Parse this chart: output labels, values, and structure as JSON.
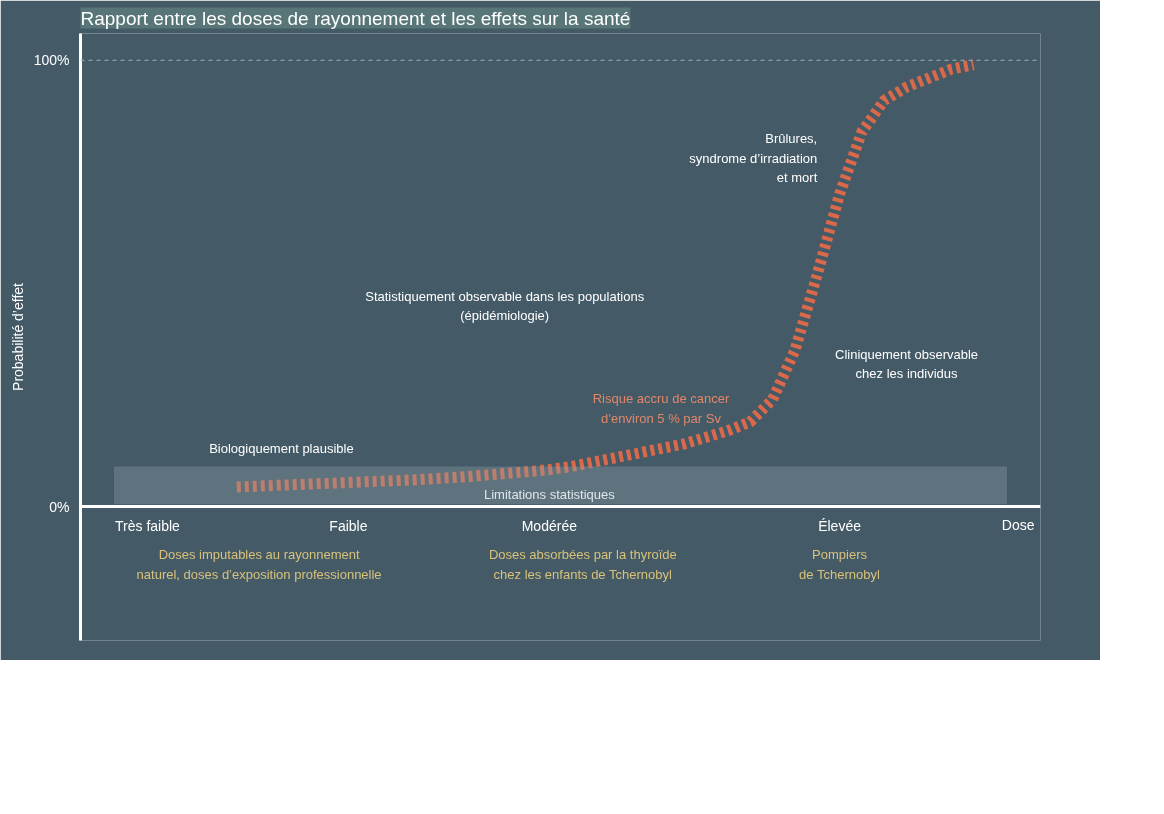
{
  "chart_data": {
    "type": "line",
    "title": "Rapport entre les doses de rayonnement et les effets sur la santé",
    "ylabel": "Probabilité d’effet",
    "xlabel": "Dose",
    "categories": [
      null,
      null,
      "Très faible",
      null,
      null,
      null,
      null,
      null,
      null,
      null,
      null,
      "Faible",
      null,
      null,
      null,
      null,
      null,
      null,
      null,
      null,
      "Modérée",
      null,
      null,
      null,
      null,
      null,
      null,
      null,
      null,
      null,
      null,
      null,
      null,
      "Élevée",
      null,
      null,
      null,
      null,
      null,
      null,
      null
    ],
    "series": [
      {
        "color": "#d9694a",
        "values": [
          null,
          null,
          null,
          null,
          null,
          null,
          4.4,
          4.6,
          4.8,
          5,
          5.2,
          5.4,
          5.6,
          5.8,
          6,
          6.3,
          6.6,
          7,
          7.4,
          7.8,
          8.3,
          9,
          10,
          11,
          12,
          13,
          14,
          15.5,
          17,
          19,
          24,
          35,
          52,
          70,
          84,
          91,
          94,
          96,
          98,
          99,
          null
        ]
      }
    ],
    "line_style": "dashed",
    "ylim": [
      -30,
      106
    ],
    "yticks": [
      {
        "value": 0,
        "label": "0%"
      },
      {
        "value": 100,
        "label": "100%"
      }
    ],
    "grid": false,
    "ref_lines": [
      {
        "axis": "y",
        "value": 100,
        "color": "#9fb0b8",
        "line_style": "dashed"
      }
    ],
    "bands": [
      {
        "axis": "y",
        "from": 0.5,
        "to": 9,
        "label": "Limitations statistiques",
        "color": "#8fa3ad"
      }
    ],
    "annotations": [
      "Statistiquement observable dans les populations\n(épidémiologie)",
      "Brûlures,\nsyndrome d’irradiation\net mort",
      "Cliniquement observable\nchez les individus",
      "Risque accru de cancer\nd’environ 5 % par Sv",
      "Biologiquement plausible",
      "Doses imputables au rayonnement\nnaturel, doses d’exposition professionnelle",
      "Doses absorbées par la thyroïde\nchez les enfants de Tchernobyl",
      "Pompiers\nde Tchernobyl"
    ]
  }
}
